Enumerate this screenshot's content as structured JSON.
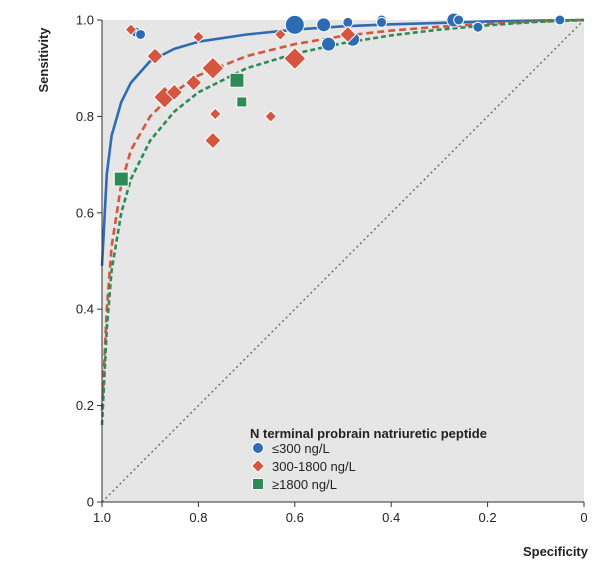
{
  "chart_data": {
    "type": "scatter",
    "xlabel": "Specificity",
    "ylabel": "Sensitivity",
    "xlim": [
      1.0,
      0
    ],
    "ylim": [
      0,
      1.0
    ],
    "x_reversed": true,
    "xticks": [
      "1.0",
      "0.8",
      "0.6",
      "0.4",
      "0.2",
      "0"
    ],
    "yticks": [
      "0",
      "0.2",
      "0.4",
      "0.6",
      "0.8",
      "1.0"
    ],
    "grid": false,
    "legend_title": "N terminal probrain natriuretic peptide",
    "legend_position": "bottom-right",
    "reference_line": "diagonal dotted",
    "series": [
      {
        "name": "≤300 ng/L",
        "marker": "circle",
        "color": "#2E6BB5",
        "curve_style": "solid",
        "points": [
          {
            "x": 0.93,
            "y": 0.975,
            "w": 1
          },
          {
            "x": 0.92,
            "y": 0.97,
            "w": 1
          },
          {
            "x": 0.6,
            "y": 0.99,
            "w": 3
          },
          {
            "x": 0.54,
            "y": 0.99,
            "w": 2
          },
          {
            "x": 0.49,
            "y": 0.995,
            "w": 1
          },
          {
            "x": 0.48,
            "y": 0.96,
            "w": 2
          },
          {
            "x": 0.53,
            "y": 0.95,
            "w": 2
          },
          {
            "x": 0.42,
            "y": 1.0,
            "w": 1
          },
          {
            "x": 0.42,
            "y": 0.995,
            "w": 1
          },
          {
            "x": 0.27,
            "y": 1.0,
            "w": 2
          },
          {
            "x": 0.26,
            "y": 1.0,
            "w": 1
          },
          {
            "x": 0.22,
            "y": 0.985,
            "w": 1
          },
          {
            "x": 0.05,
            "y": 1.0,
            "w": 1
          }
        ],
        "curve": [
          [
            1.0,
            0.49
          ],
          [
            0.99,
            0.68
          ],
          [
            0.98,
            0.76
          ],
          [
            0.96,
            0.83
          ],
          [
            0.94,
            0.87
          ],
          [
            0.9,
            0.915
          ],
          [
            0.85,
            0.94
          ],
          [
            0.8,
            0.955
          ],
          [
            0.7,
            0.97
          ],
          [
            0.6,
            0.98
          ],
          [
            0.5,
            0.987
          ],
          [
            0.4,
            0.991
          ],
          [
            0.3,
            0.994
          ],
          [
            0.2,
            0.997
          ],
          [
            0.1,
            0.999
          ],
          [
            0.0,
            1.0
          ]
        ]
      },
      {
        "name": "300-1800 ng/L",
        "marker": "diamond",
        "color": "#D5553F",
        "curve_style": "dashed",
        "points": [
          {
            "x": 0.94,
            "y": 0.98,
            "w": 1
          },
          {
            "x": 0.8,
            "y": 0.965,
            "w": 1
          },
          {
            "x": 0.89,
            "y": 0.925,
            "w": 2
          },
          {
            "x": 0.77,
            "y": 0.9,
            "w": 3
          },
          {
            "x": 0.81,
            "y": 0.87,
            "w": 2
          },
          {
            "x": 0.87,
            "y": 0.84,
            "w": 3
          },
          {
            "x": 0.85,
            "y": 0.85,
            "w": 2
          },
          {
            "x": 0.765,
            "y": 0.805,
            "w": 1
          },
          {
            "x": 0.65,
            "y": 0.8,
            "w": 1
          },
          {
            "x": 0.77,
            "y": 0.75,
            "w": 2
          },
          {
            "x": 0.6,
            "y": 0.92,
            "w": 3
          },
          {
            "x": 0.63,
            "y": 0.97,
            "w": 1
          },
          {
            "x": 0.49,
            "y": 0.97,
            "w": 2
          }
        ],
        "curve": [
          [
            1.0,
            0.19
          ],
          [
            0.99,
            0.4
          ],
          [
            0.98,
            0.53
          ],
          [
            0.96,
            0.66
          ],
          [
            0.94,
            0.73
          ],
          [
            0.9,
            0.8
          ],
          [
            0.85,
            0.85
          ],
          [
            0.8,
            0.885
          ],
          [
            0.7,
            0.925
          ],
          [
            0.6,
            0.95
          ],
          [
            0.5,
            0.967
          ],
          [
            0.4,
            0.978
          ],
          [
            0.3,
            0.986
          ],
          [
            0.2,
            0.992
          ],
          [
            0.1,
            0.997
          ],
          [
            0.0,
            1.0
          ]
        ]
      },
      {
        "name": "≥1800 ng/L",
        "marker": "square",
        "color": "#2E8B57",
        "curve_style": "dashed",
        "points": [
          {
            "x": 0.96,
            "y": 0.67,
            "w": 2
          },
          {
            "x": 0.72,
            "y": 0.875,
            "w": 2
          },
          {
            "x": 0.71,
            "y": 0.83,
            "w": 1
          }
        ],
        "curve": [
          [
            1.0,
            0.16
          ],
          [
            0.99,
            0.36
          ],
          [
            0.98,
            0.48
          ],
          [
            0.96,
            0.6
          ],
          [
            0.94,
            0.67
          ],
          [
            0.9,
            0.75
          ],
          [
            0.85,
            0.81
          ],
          [
            0.8,
            0.85
          ],
          [
            0.7,
            0.9
          ],
          [
            0.6,
            0.93
          ],
          [
            0.5,
            0.952
          ],
          [
            0.4,
            0.968
          ],
          [
            0.3,
            0.98
          ],
          [
            0.2,
            0.989
          ],
          [
            0.1,
            0.996
          ],
          [
            0.0,
            1.0
          ]
        ]
      }
    ]
  }
}
